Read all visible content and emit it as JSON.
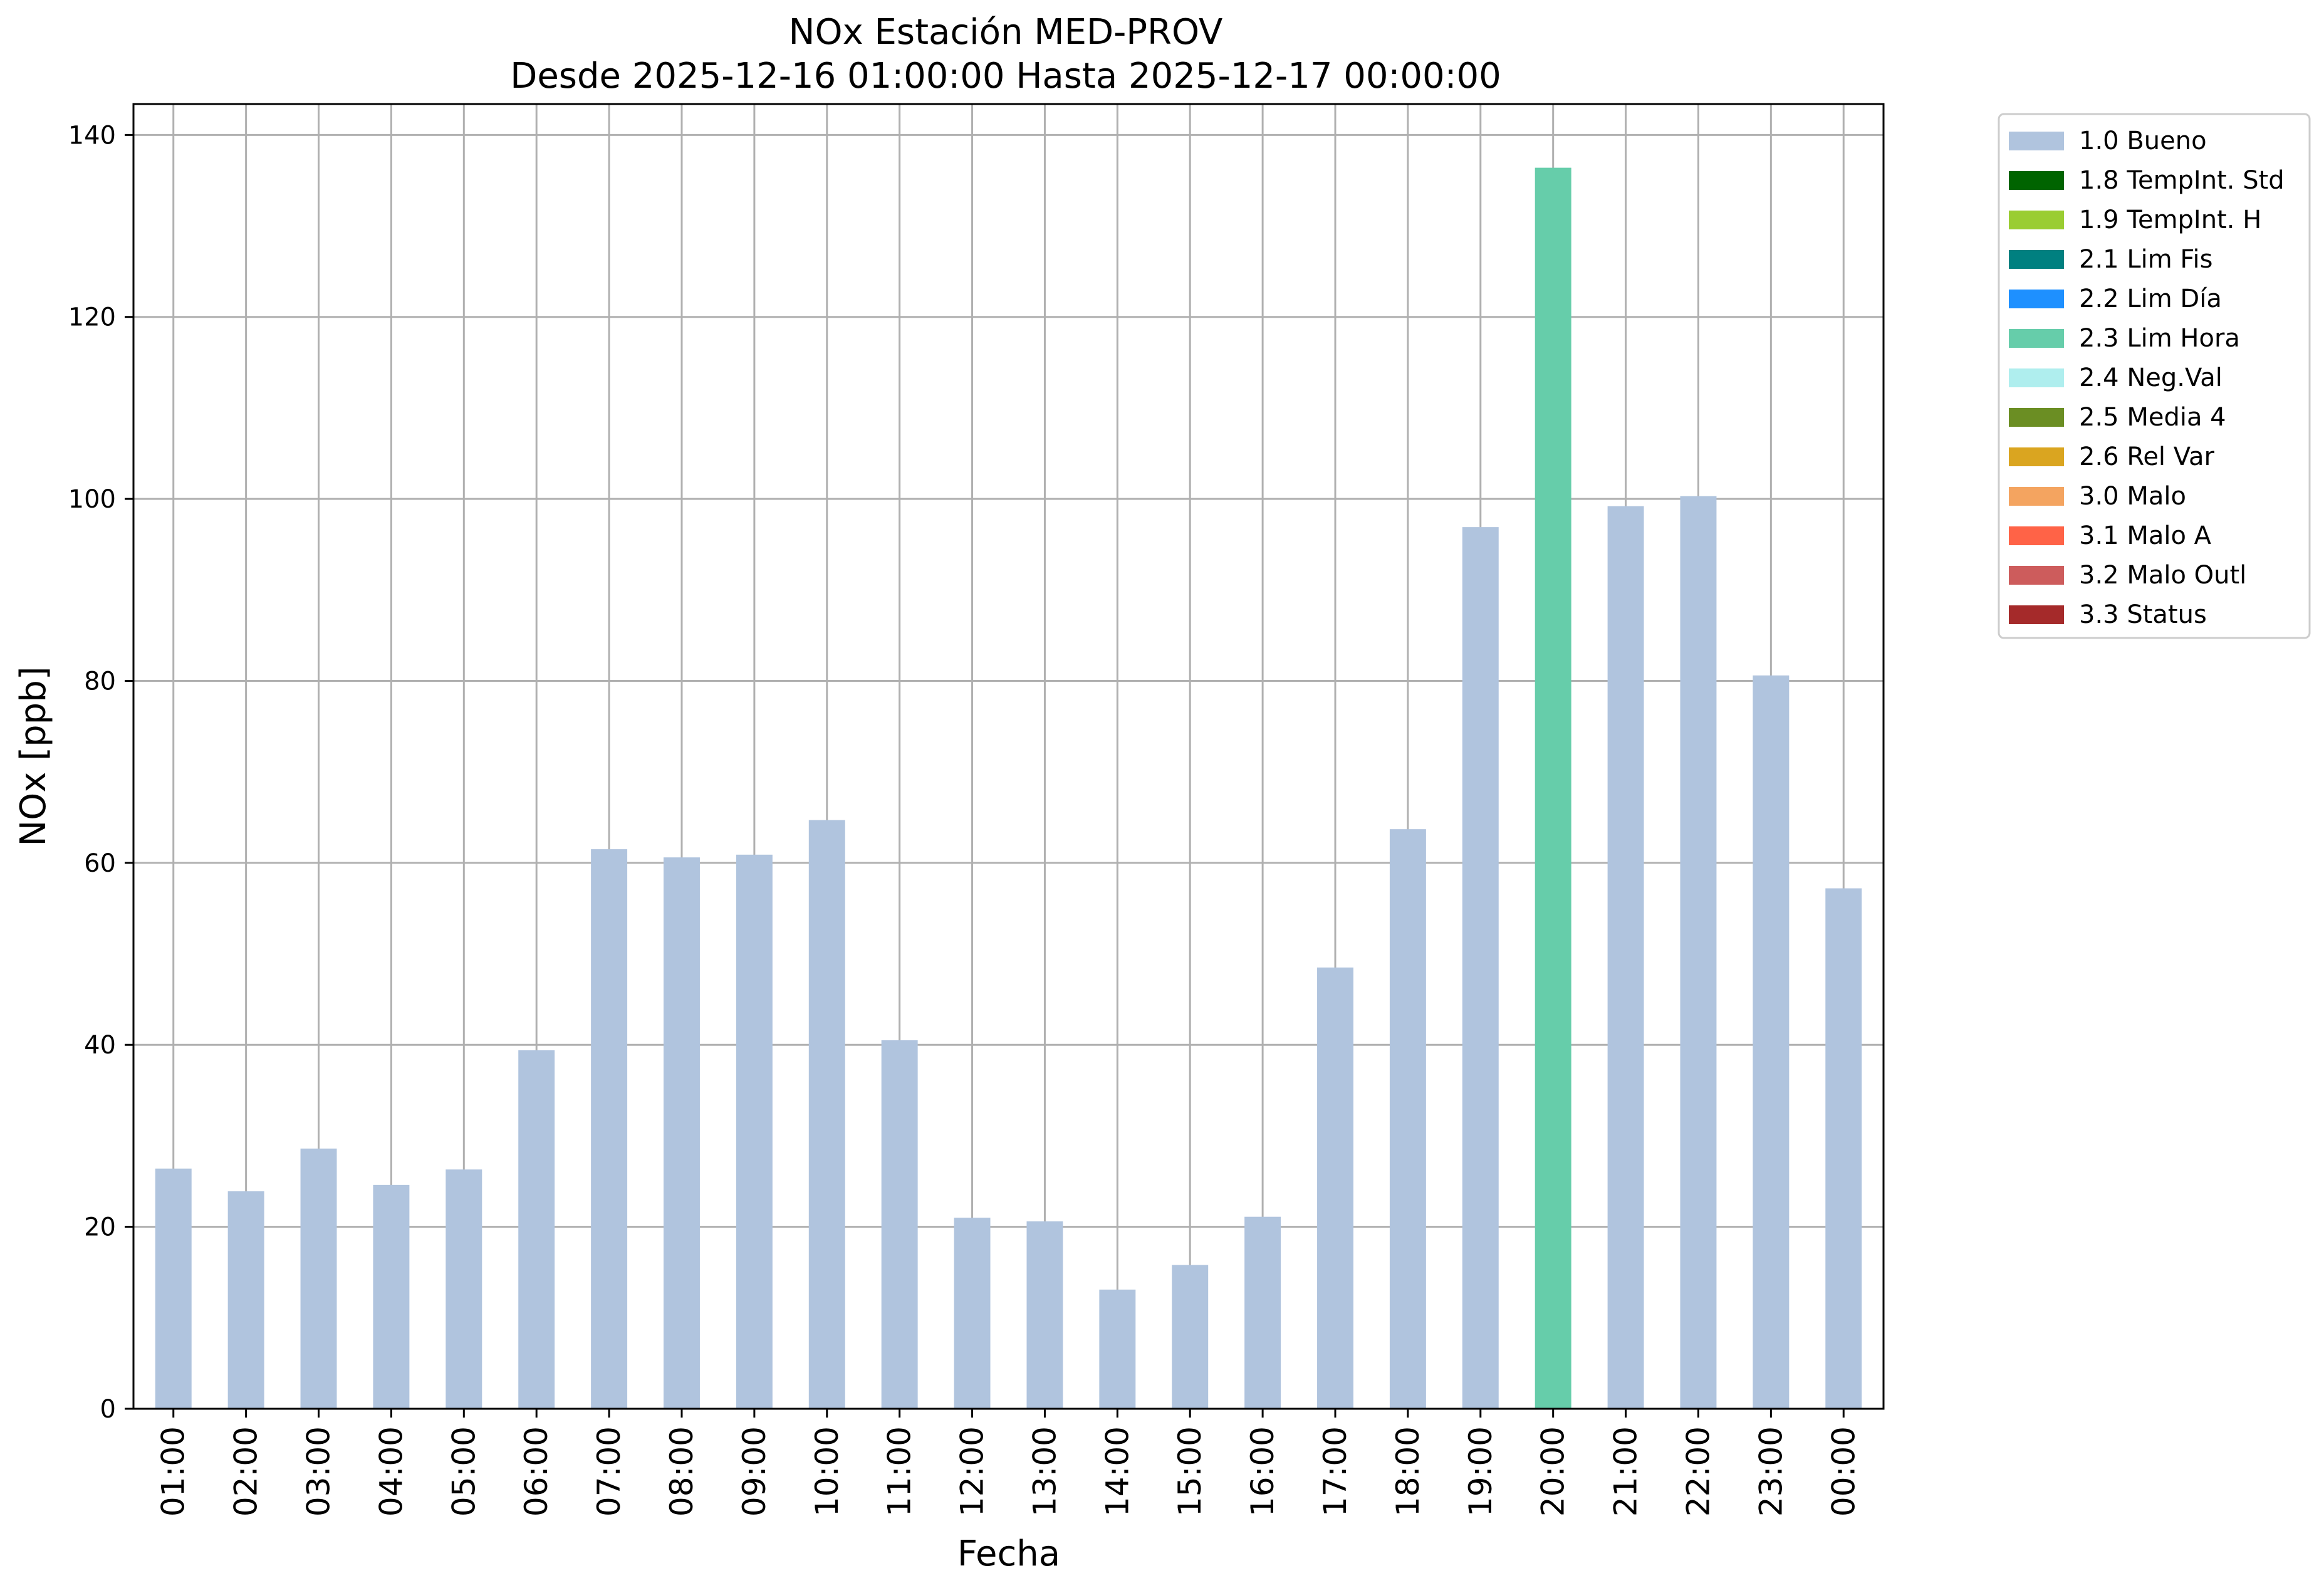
{
  "chart_data": {
    "type": "bar",
    "title": "NOx Estación MED-PROV",
    "subtitle": "Desde 2025-12-16 01:00:00 Hasta 2025-12-17 00:00:00",
    "xlabel": "Fecha",
    "ylabel": "NOx [ppb]",
    "ylim": [
      0,
      143.4
    ],
    "yticks": [
      0,
      20,
      40,
      60,
      80,
      100,
      120,
      140
    ],
    "grid": true,
    "legend_position": "outside-top-right",
    "categories": [
      "01:00",
      "02:00",
      "03:00",
      "04:00",
      "05:00",
      "06:00",
      "07:00",
      "08:00",
      "09:00",
      "10:00",
      "11:00",
      "12:00",
      "13:00",
      "14:00",
      "15:00",
      "16:00",
      "17:00",
      "18:00",
      "19:00",
      "20:00",
      "21:00",
      "22:00",
      "23:00",
      "00:00"
    ],
    "values": [
      26.4,
      23.9,
      28.6,
      24.6,
      26.3,
      39.4,
      61.5,
      60.6,
      60.9,
      64.7,
      40.5,
      21.0,
      20.6,
      13.1,
      15.8,
      21.1,
      48.5,
      63.7,
      96.9,
      136.4,
      99.2,
      100.3,
      80.6,
      57.2
    ],
    "quality_flags": [
      "1.0 Bueno",
      "1.0 Bueno",
      "1.0 Bueno",
      "1.0 Bueno",
      "1.0 Bueno",
      "1.0 Bueno",
      "1.0 Bueno",
      "1.0 Bueno",
      "1.0 Bueno",
      "1.0 Bueno",
      "1.0 Bueno",
      "1.0 Bueno",
      "1.0 Bueno",
      "1.0 Bueno",
      "1.0 Bueno",
      "1.0 Bueno",
      "1.0 Bueno",
      "1.0 Bueno",
      "1.0 Bueno",
      "2.3 Lim Hora",
      "1.0 Bueno",
      "1.0 Bueno",
      "1.0 Bueno",
      "1.0 Bueno"
    ],
    "legend": [
      {
        "label": "1.0 Bueno",
        "color": "#b0c4de"
      },
      {
        "label": "1.8 TempInt. Std",
        "color": "#006400"
      },
      {
        "label": "1.9 TempInt. H",
        "color": "#9acd32"
      },
      {
        "label": "2.1 Lim Fis",
        "color": "#008080"
      },
      {
        "label": "2.2 Lim Día",
        "color": "#1e90ff"
      },
      {
        "label": "2.3 Lim Hora",
        "color": "#66cdaa"
      },
      {
        "label": "2.4 Neg.Val",
        "color": "#afeeee"
      },
      {
        "label": "2.5 Media 4",
        "color": "#6b8e23"
      },
      {
        "label": "2.6 Rel Var",
        "color": "#daa520"
      },
      {
        "label": "3.0 Malo",
        "color": "#f4a460"
      },
      {
        "label": "3.1 Malo A",
        "color": "#ff6347"
      },
      {
        "label": "3.2 Malo Outl",
        "color": "#cd5c5c"
      },
      {
        "label": "3.3 Status",
        "color": "#a52a2a"
      }
    ]
  }
}
